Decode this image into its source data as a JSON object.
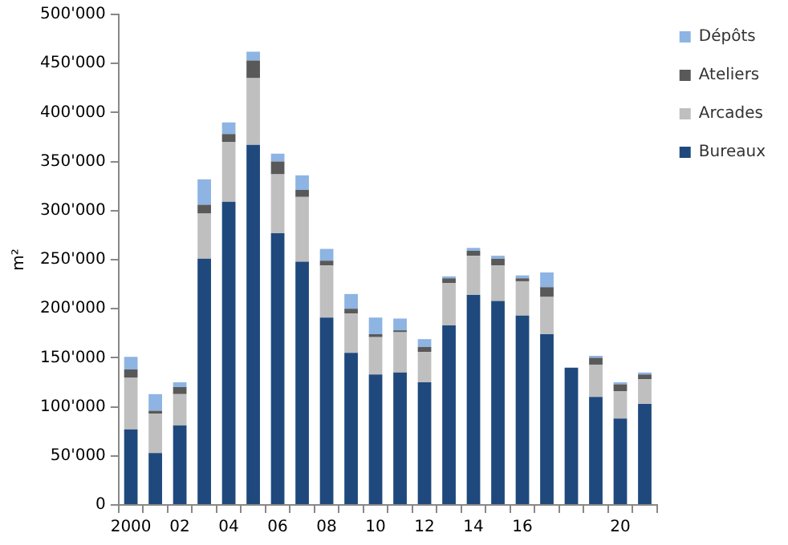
{
  "chart_data": {
    "type": "bar",
    "stacked": true,
    "ylabel": "m²",
    "categories": [
      "2000",
      null,
      "02",
      null,
      "04",
      null,
      "06",
      null,
      "08",
      null,
      "10",
      null,
      "12",
      null,
      "14",
      null,
      "16",
      null,
      null,
      null,
      "20",
      null
    ],
    "series": [
      {
        "name": "Bureaux",
        "color": "#1f497d",
        "values": [
          77000,
          53000,
          81000,
          251000,
          309000,
          367000,
          277000,
          248000,
          191000,
          155000,
          133000,
          135000,
          125000,
          183000,
          214000,
          208000,
          193000,
          174000,
          140000,
          110000,
          88000,
          103000
        ]
      },
      {
        "name": "Arcades",
        "color": "#bfbfbf",
        "values": [
          53000,
          40000,
          32000,
          46000,
          61000,
          68000,
          60000,
          66000,
          53000,
          40000,
          38000,
          41000,
          31000,
          43000,
          40000,
          36000,
          35000,
          38000,
          0,
          33000,
          28000,
          25000
        ]
      },
      {
        "name": "Ateliers",
        "color": "#595959",
        "values": [
          8000,
          3000,
          7000,
          9000,
          8000,
          18000,
          13000,
          7000,
          5000,
          5000,
          3000,
          2000,
          5000,
          5000,
          5000,
          7000,
          3000,
          10000,
          0,
          7000,
          7000,
          5000
        ]
      },
      {
        "name": "Dépôts",
        "color": "#8db4e2",
        "values": [
          13000,
          17000,
          5000,
          26000,
          12000,
          9000,
          8000,
          15000,
          12000,
          15000,
          17000,
          12000,
          8000,
          2000,
          3000,
          3000,
          3000,
          15000,
          0,
          2000,
          2000,
          2000
        ]
      }
    ],
    "ylim": [
      0,
      500000
    ],
    "yticks": [
      0,
      {
        "value": 50000,
        "label": "50'000"
      },
      {
        "value": 100000,
        "label": "100'000"
      },
      {
        "value": 150000,
        "label": "150'000"
      },
      {
        "value": 200000,
        "label": "200'000"
      },
      {
        "value": 250000,
        "label": "250'000"
      },
      {
        "value": 300000,
        "label": "300'000"
      },
      {
        "value": 350000,
        "label": "350'000"
      },
      {
        "value": 400000,
        "label": "400'000"
      },
      {
        "value": 450000,
        "label": "450'000"
      },
      {
        "value": 500000,
        "label": "500'000"
      }
    ],
    "grid": false,
    "legend": "top right"
  }
}
